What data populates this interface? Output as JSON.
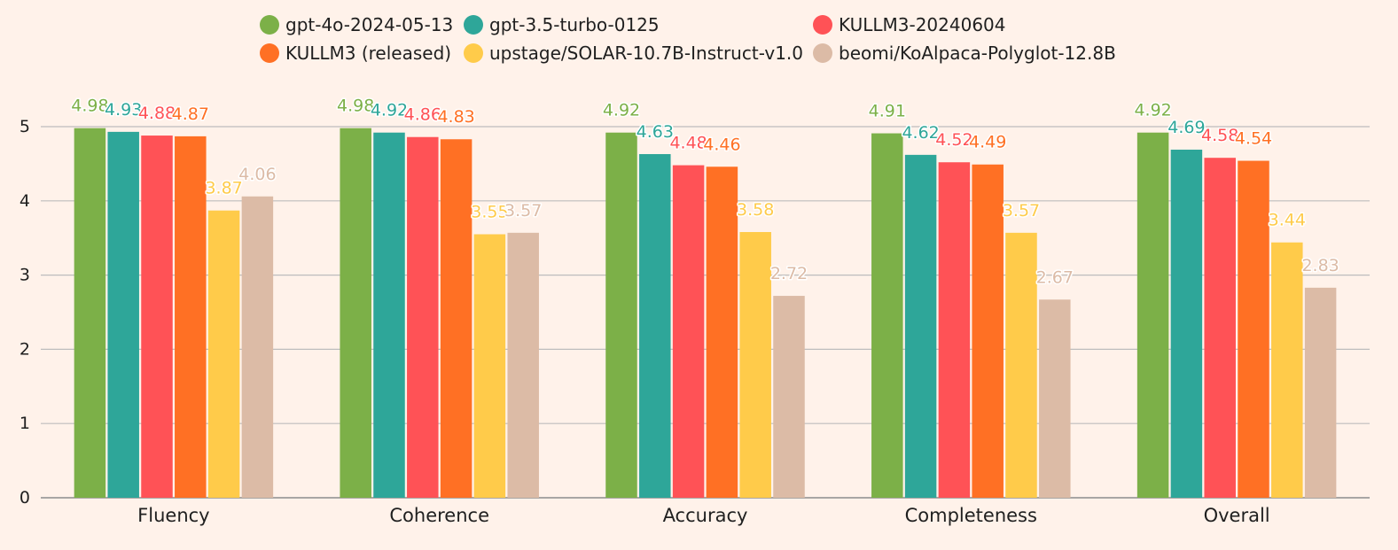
{
  "chart_data": {
    "type": "bar",
    "categories": [
      "Fluency",
      "Coherence",
      "Accuracy",
      "Completeness",
      "Overall"
    ],
    "series": [
      {
        "name": "gpt-4o-2024-05-13",
        "color": "#7cb048",
        "values": [
          4.98,
          4.98,
          4.92,
          4.91,
          4.92
        ]
      },
      {
        "name": "gpt-3.5-turbo-0125",
        "color": "#2ea699",
        "values": [
          4.93,
          4.92,
          4.63,
          4.62,
          4.69
        ]
      },
      {
        "name": "KULLM3-20240604",
        "color": "#ff5256",
        "values": [
          4.88,
          4.86,
          4.48,
          4.52,
          4.58
        ]
      },
      {
        "name": "KULLM3 (released)",
        "color": "#ff7024",
        "values": [
          4.87,
          4.83,
          4.46,
          4.49,
          4.54
        ]
      },
      {
        "name": "upstage/SOLAR-10.7B-Instruct-v1.0",
        "color": "#ffcb4a",
        "values": [
          3.87,
          3.55,
          3.58,
          3.57,
          3.44
        ]
      },
      {
        "name": "beomi/KoAlpaca-Polyglot-12.8B",
        "color": "#dcbba6",
        "values": [
          4.06,
          3.57,
          2.72,
          2.67,
          2.83
        ]
      }
    ],
    "data_labels": [
      [
        "4.98",
        "4.98",
        "4.92",
        "4.91",
        "4.92"
      ],
      [
        "4.93",
        "4.92",
        "4.63",
        "4.62",
        "4.69"
      ],
      [
        "4.88",
        "4.86",
        "4.48",
        "4.52",
        "4.58"
      ],
      [
        "4.87",
        "4.83",
        "4.46",
        "4.49",
        "4.54"
      ],
      [
        "3.87",
        "3.55",
        "3.58",
        "3.57",
        "3.44"
      ],
      [
        "4.06",
        "3.57",
        "2.72",
        "2.67",
        "2.83"
      ]
    ],
    "ylim": [
      0,
      5
    ],
    "yticks": [
      "0",
      "1",
      "2",
      "3",
      "4",
      "5"
    ],
    "grid": true,
    "legend_position": "top"
  }
}
